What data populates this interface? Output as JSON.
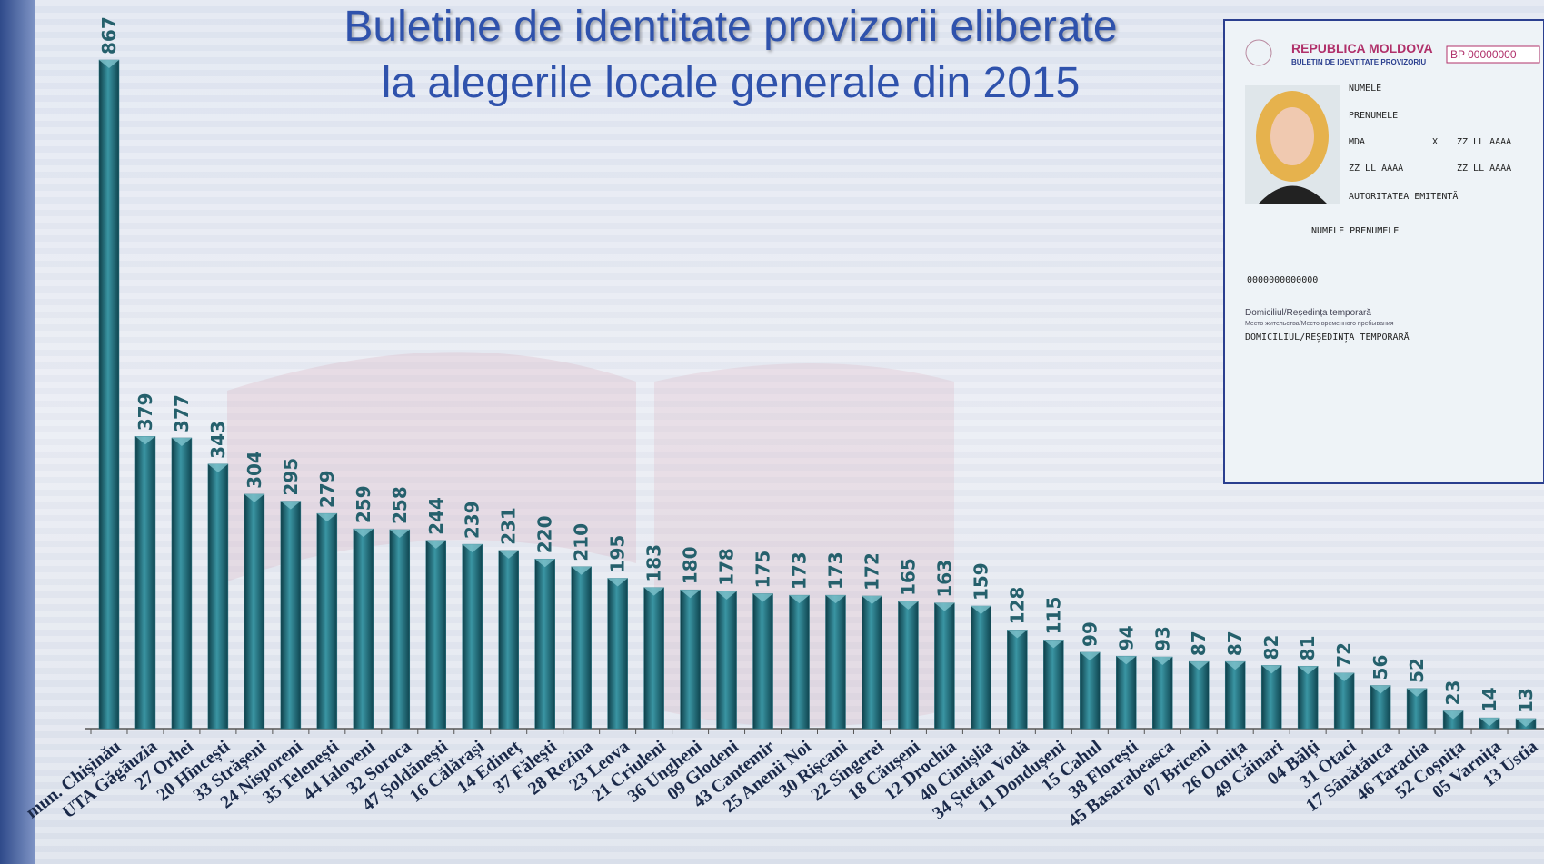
{
  "chart_data": {
    "type": "bar",
    "title": [
      "Buletine de identitate provizorii eliberate",
      "la alegerile locale generale din 2015"
    ],
    "categories": [
      "mun. Chișinău",
      "UTA Găgăuzia",
      "27 Orhei",
      "20 Hîncești",
      "33 Strășeni",
      "24 Nisporeni",
      "35 Telenești",
      "44 Ialoveni",
      "32 Soroca",
      "47 Șoldănești",
      "16 Călărași",
      "14 Edineț",
      "37 Fălești",
      "28 Rezina",
      "23 Leova",
      "21 Criuleni",
      "36 Ungheni",
      "09 Glodeni",
      "43 Cantemir",
      "25 Anenii Noi",
      "30 Rișcani",
      "22 Sîngerei",
      "18 Căușeni",
      "12 Drochia",
      "40 Cimișlia",
      "34 Ștefan Vodă",
      "11 Dondușeni",
      "15 Cahul",
      "38 Florești",
      "45 Basarabeasca",
      "07 Briceni",
      "26 Ocnița",
      "49 Căinari",
      "04 Bălți",
      "31 Otaci",
      "17 Sânătăuca",
      "46 Taraclia",
      "52 Coșnița",
      "05 Varnița",
      "13 Ustia"
    ],
    "values": [
      867,
      379,
      377,
      343,
      304,
      295,
      279,
      259,
      258,
      244,
      239,
      231,
      220,
      210,
      195,
      183,
      180,
      178,
      175,
      173,
      173,
      172,
      165,
      163,
      159,
      128,
      115,
      99,
      94,
      93,
      87,
      87,
      82,
      81,
      72,
      56,
      52,
      23,
      14,
      13
    ],
    "color": "#2c7886"
  },
  "card": {
    "country": "REPUBLICA MOLDOVA",
    "doc": "BULETIN DE IDENTITATE PROVIZORIU",
    "number": "BP 00000000",
    "surname": "NUMELE",
    "name": "PRENUMELE",
    "nationality": "MDA",
    "sex": "X",
    "dates": [
      "ZZ LL AAAA",
      "ZZ LL AAAA",
      "ZZ LL AAAA"
    ],
    "authority": "AUTORITATEA EMITENTĂ",
    "holder": "NUMELE PRENUMELE",
    "idnp": "0000000000000",
    "address_label": "Domiciliul/Reședința temporară",
    "address_label_ru": "Место жительства/Место временного пребывания",
    "address": "DOMICILIUL/REȘEDINȚA TEMPORARĂ"
  }
}
